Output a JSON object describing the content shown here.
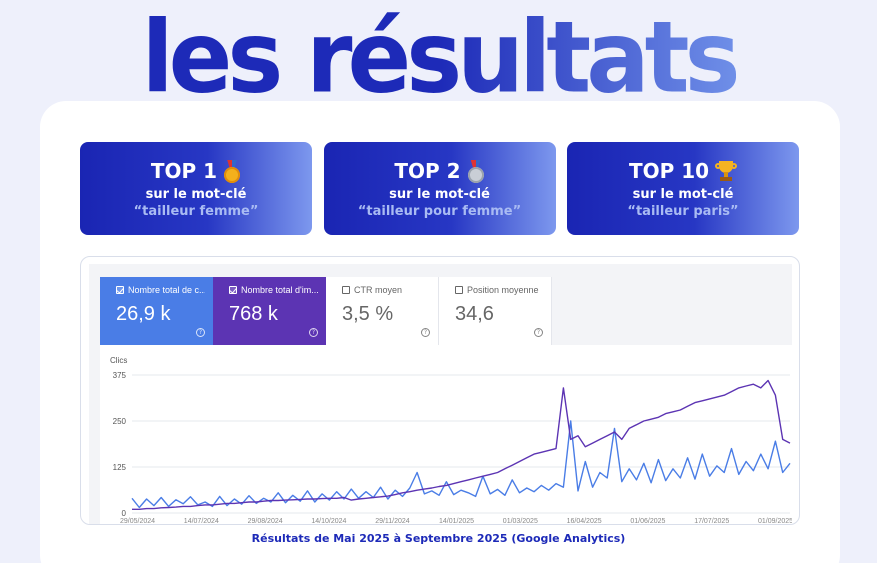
{
  "headline": "les résultats",
  "ranks": [
    {
      "title": "TOP 1",
      "icon": "gold-medal-icon",
      "subtitle": "sur le mot-clé",
      "keyword": "“tailleur femme”"
    },
    {
      "title": "TOP 2",
      "icon": "silver-medal-icon",
      "subtitle": "sur le mot-clé",
      "keyword": "“tailleur pour femme”"
    },
    {
      "title": "TOP 10",
      "icon": "trophy-icon",
      "subtitle": "sur le mot-clé",
      "keyword": "“tailleur paris”"
    }
  ],
  "metrics": [
    {
      "label": "Nombre total de c...",
      "value": "26,9 k",
      "checked": true,
      "color": "#4a7de6"
    },
    {
      "label": "Nombre total d'im...",
      "value": "768 k",
      "checked": true,
      "color": "#5c34b3"
    },
    {
      "label": "CTR moyen",
      "value": "3,5 %",
      "checked": false
    },
    {
      "label": "Position moyenne",
      "value": "34,6",
      "checked": false
    }
  ],
  "chart_data": {
    "type": "line",
    "ylabel": "Clics",
    "yticks": [
      "375",
      "250",
      "125",
      "0"
    ],
    "ylim": [
      0,
      375
    ],
    "grid": true,
    "x_ticks": [
      "29/05/2024",
      "14/07/2024",
      "29/08/2024",
      "14/10/2024",
      "29/11/2024",
      "14/01/2025",
      "01/03/2025",
      "16/04/2025",
      "01/06/2025",
      "17/07/2025",
      "01/09/2025"
    ],
    "series": [
      {
        "color": "#4a7de6",
        "values": [
          40,
          15,
          38,
          20,
          42,
          18,
          36,
          25,
          44,
          22,
          30,
          18,
          45,
          20,
          38,
          24,
          47,
          26,
          40,
          30,
          55,
          28,
          48,
          32,
          60,
          30,
          52,
          35,
          58,
          38,
          65,
          40,
          58,
          42,
          70,
          38,
          62,
          45,
          68,
          110,
          52,
          60,
          48,
          85,
          50,
          62,
          55,
          45,
          100,
          52,
          64,
          48,
          90,
          55,
          68,
          58,
          75,
          62,
          80,
          70,
          250,
          60,
          140,
          70,
          110,
          95,
          230,
          85,
          120,
          90,
          135,
          82,
          145,
          88,
          120,
          95,
          150,
          92,
          160,
          100,
          128,
          110,
          175,
          105,
          140,
          115,
          160,
          120,
          195,
          110,
          135
        ]
      },
      {
        "color": "#5c34b3",
        "values": [
          10,
          10,
          12,
          12,
          14,
          15,
          16,
          18,
          18,
          20,
          22,
          22,
          24,
          26,
          26,
          28,
          30,
          30,
          32,
          34,
          34,
          35,
          36,
          37,
          38,
          38,
          39,
          40,
          40,
          42,
          35,
          38,
          40,
          42,
          44,
          46,
          50,
          55,
          58,
          62,
          65,
          68,
          72,
          75,
          80,
          85,
          90,
          95,
          100,
          105,
          110,
          120,
          130,
          140,
          150,
          160,
          165,
          170,
          175,
          340,
          200,
          210,
          180,
          190,
          200,
          210,
          220,
          200,
          230,
          240,
          250,
          255,
          260,
          270,
          275,
          280,
          290,
          300,
          305,
          310,
          315,
          320,
          330,
          340,
          345,
          350,
          340,
          360,
          320,
          200,
          190
        ]
      }
    ]
  },
  "caption": "Résultats de Mai 2025 à Septembre 2025 (Google Analytics)"
}
